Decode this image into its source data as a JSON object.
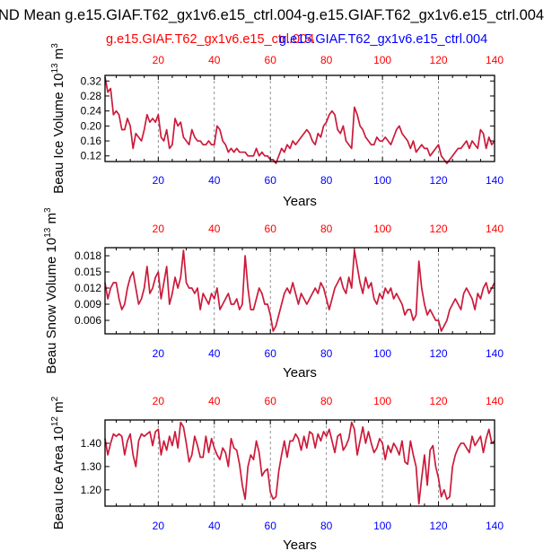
{
  "title": "ND Mean g.e15.GIAF.T62_gx1v6.e15_ctrl.004-g.e15.GIAF.T62_gx1v6.e15_ctrl.004",
  "legend": {
    "red_label": "g.e15.GIAF.T62_gx1v6.e15_ctrl.004",
    "blue_label": "g.e15.GIAF.T62_gx1v6.e15_ctrl.004"
  },
  "colors": {
    "series": "#cc1a3a",
    "top_axis": "#ff0000",
    "bottom_axis": "#0000ff",
    "frame": "#000000",
    "grid": "#777777"
  },
  "chart_data": [
    {
      "type": "line",
      "id": "ice-volume",
      "ylabel_main": "Beau Ice Volume 10",
      "ylabel_exp": "13",
      "ylabel_unit": " m",
      "ylabel_unit_exp": "3",
      "xlabel": "Years",
      "xlim": [
        1,
        140
      ],
      "ylim": [
        0.105,
        0.335
      ],
      "yticks": [
        0.12,
        0.16,
        0.2,
        0.24,
        0.28,
        0.32
      ],
      "ytick_labels": [
        "0.12",
        "0.16",
        "0.20",
        "0.24",
        "0.28",
        "0.32"
      ],
      "xticks": [
        20,
        40,
        60,
        80,
        100,
        120,
        140
      ],
      "xtick_labels": [
        "20",
        "40",
        "60",
        "80",
        "100",
        "120",
        "140"
      ],
      "series": [
        {
          "name": "ice volume",
          "values": [
            0.33,
            0.29,
            0.3,
            0.23,
            0.24,
            0.23,
            0.19,
            0.19,
            0.22,
            0.2,
            0.14,
            0.18,
            0.17,
            0.16,
            0.19,
            0.23,
            0.21,
            0.22,
            0.21,
            0.23,
            0.17,
            0.16,
            0.19,
            0.14,
            0.15,
            0.22,
            0.2,
            0.21,
            0.17,
            0.16,
            0.15,
            0.19,
            0.17,
            0.16,
            0.16,
            0.15,
            0.15,
            0.16,
            0.15,
            0.15,
            0.2,
            0.19,
            0.16,
            0.15,
            0.13,
            0.14,
            0.13,
            0.14,
            0.13,
            0.13,
            0.13,
            0.12,
            0.12,
            0.12,
            0.14,
            0.12,
            0.13,
            0.12,
            0.12,
            0.11,
            0.11,
            0.1,
            0.12,
            0.14,
            0.13,
            0.15,
            0.14,
            0.16,
            0.15,
            0.16,
            0.17,
            0.18,
            0.19,
            0.18,
            0.16,
            0.15,
            0.18,
            0.17,
            0.2,
            0.21,
            0.23,
            0.24,
            0.23,
            0.19,
            0.18,
            0.2,
            0.16,
            0.15,
            0.14,
            0.25,
            0.23,
            0.2,
            0.19,
            0.17,
            0.16,
            0.15,
            0.15,
            0.17,
            0.16,
            0.16,
            0.17,
            0.16,
            0.15,
            0.17,
            0.19,
            0.2,
            0.18,
            0.17,
            0.16,
            0.14,
            0.16,
            0.13,
            0.14,
            0.15,
            0.14,
            0.14,
            0.12,
            0.13,
            0.14,
            0.15,
            0.12,
            0.11,
            0.1,
            0.11,
            0.12,
            0.13,
            0.14,
            0.14,
            0.15,
            0.16,
            0.14,
            0.16,
            0.15,
            0.14,
            0.19,
            0.18,
            0.14,
            0.17,
            0.15,
            0.16
          ]
        }
      ]
    },
    {
      "type": "line",
      "id": "snow-volume",
      "ylabel_main": "Beau Snow Volume 10",
      "ylabel_exp": "13",
      "ylabel_unit": " m",
      "ylabel_unit_exp": "3",
      "xlabel": "Years",
      "xlim": [
        1,
        140
      ],
      "ylim": [
        0.0035,
        0.0195
      ],
      "yticks": [
        0.006,
        0.009,
        0.012,
        0.015,
        0.018
      ],
      "ytick_labels": [
        "0.006",
        "0.009",
        "0.012",
        "0.015",
        "0.018"
      ],
      "xticks": [
        20,
        40,
        60,
        80,
        100,
        120,
        140
      ],
      "xtick_labels": [
        "20",
        "40",
        "60",
        "80",
        "100",
        "120",
        "140"
      ],
      "series": [
        {
          "name": "snow volume",
          "values": [
            0.013,
            0.01,
            0.012,
            0.013,
            0.013,
            0.01,
            0.008,
            0.009,
            0.012,
            0.014,
            0.015,
            0.012,
            0.009,
            0.01,
            0.012,
            0.016,
            0.011,
            0.012,
            0.014,
            0.015,
            0.01,
            0.013,
            0.016,
            0.009,
            0.011,
            0.014,
            0.012,
            0.014,
            0.019,
            0.013,
            0.012,
            0.012,
            0.011,
            0.012,
            0.008,
            0.011,
            0.01,
            0.009,
            0.011,
            0.01,
            0.012,
            0.008,
            0.009,
            0.01,
            0.011,
            0.009,
            0.009,
            0.01,
            0.008,
            0.009,
            0.018,
            0.012,
            0.008,
            0.008,
            0.01,
            0.012,
            0.011,
            0.009,
            0.009,
            0.007,
            0.004,
            0.005,
            0.007,
            0.009,
            0.011,
            0.012,
            0.011,
            0.013,
            0.011,
            0.009,
            0.011,
            0.01,
            0.009,
            0.01,
            0.011,
            0.012,
            0.011,
            0.013,
            0.012,
            0.01,
            0.008,
            0.01,
            0.012,
            0.013,
            0.014,
            0.012,
            0.011,
            0.014,
            0.012,
            0.019,
            0.016,
            0.013,
            0.011,
            0.014,
            0.012,
            0.013,
            0.01,
            0.009,
            0.011,
            0.01,
            0.012,
            0.011,
            0.012,
            0.01,
            0.011,
            0.01,
            0.009,
            0.007,
            0.008,
            0.008,
            0.006,
            0.007,
            0.017,
            0.012,
            0.009,
            0.007,
            0.008,
            0.007,
            0.006,
            0.006,
            0.004,
            0.005,
            0.006,
            0.008,
            0.009,
            0.01,
            0.009,
            0.008,
            0.011,
            0.012,
            0.011,
            0.01,
            0.008,
            0.011,
            0.01,
            0.012,
            0.013,
            0.011,
            0.012,
            0.013
          ]
        }
      ]
    },
    {
      "type": "line",
      "id": "ice-area",
      "ylabel_main": "Beau Ice Area 10",
      "ylabel_exp": "12",
      "ylabel_unit": " m",
      "ylabel_unit_exp": "2",
      "xlabel": "Years",
      "xlim": [
        1,
        140
      ],
      "ylim": [
        1.13,
        1.5
      ],
      "yticks": [
        1.2,
        1.3,
        1.4
      ],
      "ytick_labels": [
        "1.20",
        "1.30",
        "1.40"
      ],
      "xticks": [
        20,
        40,
        60,
        80,
        100,
        120,
        140
      ],
      "xtick_labels": [
        "20",
        "40",
        "60",
        "80",
        "100",
        "120",
        "140"
      ],
      "series": [
        {
          "name": "ice area",
          "values": [
            1.42,
            1.35,
            1.4,
            1.44,
            1.43,
            1.44,
            1.43,
            1.35,
            1.41,
            1.44,
            1.35,
            1.3,
            1.41,
            1.44,
            1.43,
            1.44,
            1.45,
            1.39,
            1.45,
            1.46,
            1.35,
            1.41,
            1.37,
            1.43,
            1.39,
            1.45,
            1.38,
            1.49,
            1.47,
            1.4,
            1.32,
            1.35,
            1.43,
            1.39,
            1.34,
            1.34,
            1.43,
            1.36,
            1.42,
            1.38,
            1.35,
            1.33,
            1.38,
            1.36,
            1.3,
            1.42,
            1.38,
            1.37,
            1.31,
            1.22,
            1.16,
            1.3,
            1.35,
            1.33,
            1.41,
            1.36,
            1.26,
            1.28,
            1.29,
            1.19,
            1.16,
            1.17,
            1.28,
            1.35,
            1.41,
            1.34,
            1.41,
            1.41,
            1.44,
            1.42,
            1.37,
            1.43,
            1.38,
            1.45,
            1.44,
            1.38,
            1.44,
            1.41,
            1.45,
            1.43,
            1.46,
            1.41,
            1.36,
            1.43,
            1.44,
            1.37,
            1.39,
            1.42,
            1.49,
            1.46,
            1.35,
            1.41,
            1.47,
            1.4,
            1.45,
            1.4,
            1.36,
            1.38,
            1.42,
            1.4,
            1.33,
            1.39,
            1.36,
            1.4,
            1.38,
            1.35,
            1.41,
            1.32,
            1.31,
            1.41,
            1.35,
            1.3,
            1.14,
            1.25,
            1.35,
            1.22,
            1.37,
            1.39,
            1.3,
            1.25,
            1.17,
            1.2,
            1.16,
            1.17,
            1.3,
            1.35,
            1.38,
            1.4,
            1.4,
            1.38,
            1.36,
            1.43,
            1.39,
            1.41,
            1.43,
            1.36,
            1.42,
            1.46,
            1.4,
            1.41
          ]
        }
      ]
    }
  ]
}
